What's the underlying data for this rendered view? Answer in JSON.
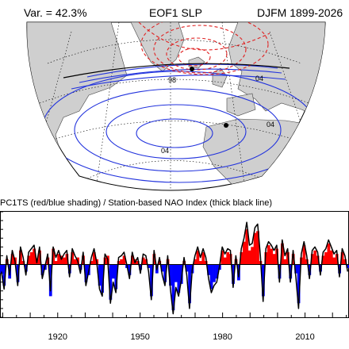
{
  "header": {
    "variance": "Var. = 42.3%",
    "title": "EOF1 SLP",
    "season": "DJFM 1899-2026"
  },
  "map": {
    "contour_labels": [
      "98",
      "04",
      "04",
      "04"
    ],
    "positive_color": "#2233dd",
    "negative_color": "#e02020",
    "land_color": "#cfcfcf"
  },
  "timeseries": {
    "title": "PC1TS (red/blue shading) / Station-based NAO Index (thick black line)"
  },
  "chart_data": {
    "type": "area",
    "x_ticks": [
      1920,
      1950,
      1980,
      2010
    ],
    "xlim": [
      1899,
      2026
    ],
    "ylim": [
      -3,
      3
    ],
    "pos_color": "#ff0000",
    "neg_color": "#0000ff",
    "line_color": "#000000",
    "series": [
      {
        "values": [
          -0.5,
          -1.2,
          0.3,
          -0.8,
          0.6,
          0.4,
          -1.0,
          0.8,
          0.2,
          -0.4,
          0.5,
          0.7,
          0.9,
          0.3,
          0.8,
          -0.6,
          -0.3,
          0.4,
          -1.8,
          0.9,
          0.2,
          0.6,
          0.5,
          0.4,
          0.6,
          -0.5,
          0.7,
          0.3,
          0.4,
          -0.3,
          0.5,
          -1.0,
          -0.6,
          0.2,
          0.7,
          0.3,
          -1.2,
          -1.6,
          0.4,
          0.5,
          -2.0,
          -0.8,
          -1.4,
          0.2,
          0.3,
          0.5,
          -0.2,
          -0.6,
          0.5,
          0.3,
          0.2,
          -0.3,
          0.4,
          0.3,
          -0.2,
          -1.8,
          0.6,
          -0.5,
          0.2,
          -0.4,
          -1.0,
          0.3,
          -1.2,
          -2.6,
          -1.0,
          -1.6,
          -1.1,
          0.2,
          -0.4,
          -2.2,
          -0.5,
          0.3,
          0.8,
          0.2,
          0.7,
          0.2,
          -0.6,
          -1.4,
          -1.0,
          -0.8,
          -0.3,
          0.8,
          0.4,
          0.7,
          0.6,
          -1.1,
          0.3,
          -0.9,
          0.7,
          1.3,
          2.0,
          0.8,
          1.0,
          1.8,
          1.9,
          0.2,
          -1.8,
          0.7,
          1.1,
          0.9,
          0.6,
          0.9,
          -0.8,
          1.2,
          0.3,
          0.7,
          -0.8,
          0.6,
          -0.5,
          -2.2,
          0.4,
          1.1,
          0.3,
          -0.6,
          0.6,
          0.8,
          0.5,
          -0.4,
          0.5,
          0.7,
          1.2,
          0.8,
          0.4,
          0.6,
          -0.5,
          0.7,
          0.3,
          -0.2
        ]
      },
      {
        "values": [
          -0.4,
          -1.4,
          0.5,
          -0.6,
          0.8,
          0.2,
          -1.2,
          1.0,
          0.4,
          -0.6,
          0.7,
          0.9,
          1.1,
          0.1,
          1.0,
          -0.8,
          -0.1,
          0.6,
          -1.5,
          1.0,
          0.4,
          0.8,
          0.3,
          0.6,
          0.8,
          -0.7,
          0.9,
          0.5,
          0.2,
          -0.5,
          0.7,
          -1.2,
          -0.4,
          0.4,
          0.9,
          0.1,
          -1.4,
          -1.8,
          0.6,
          0.3,
          -2.2,
          -1.0,
          -1.6,
          0.4,
          0.5,
          0.7,
          0.0,
          -0.8,
          0.7,
          0.1,
          0.4,
          -0.5,
          0.6,
          0.5,
          -0.4,
          -2.0,
          0.8,
          -0.3,
          0.4,
          -0.6,
          -1.2,
          0.5,
          -1.4,
          -2.8,
          -1.3,
          -1.8,
          -0.9,
          0.4,
          -0.6,
          -2.5,
          -0.3,
          0.5,
          1.0,
          0.4,
          0.9,
          0.4,
          -0.8,
          -1.6,
          -1.2,
          -1.0,
          -0.1,
          1.0,
          0.6,
          0.9,
          0.8,
          -1.3,
          0.5,
          -0.7,
          0.9,
          1.5,
          2.4,
          1.1,
          1.2,
          2.1,
          2.3,
          0.5,
          -2.1,
          0.9,
          1.3,
          1.1,
          0.8,
          1.1,
          -1.0,
          1.4,
          0.5,
          0.9,
          -1.0,
          0.8,
          -0.7,
          -2.5,
          0.6,
          1.3,
          0.5,
          -0.8,
          0.8,
          1.0,
          0.7,
          -0.6,
          0.7,
          0.9,
          1.4,
          1.0,
          0.6,
          0.8,
          -0.7,
          0.9,
          0.5,
          -0.4
        ]
      }
    ]
  }
}
